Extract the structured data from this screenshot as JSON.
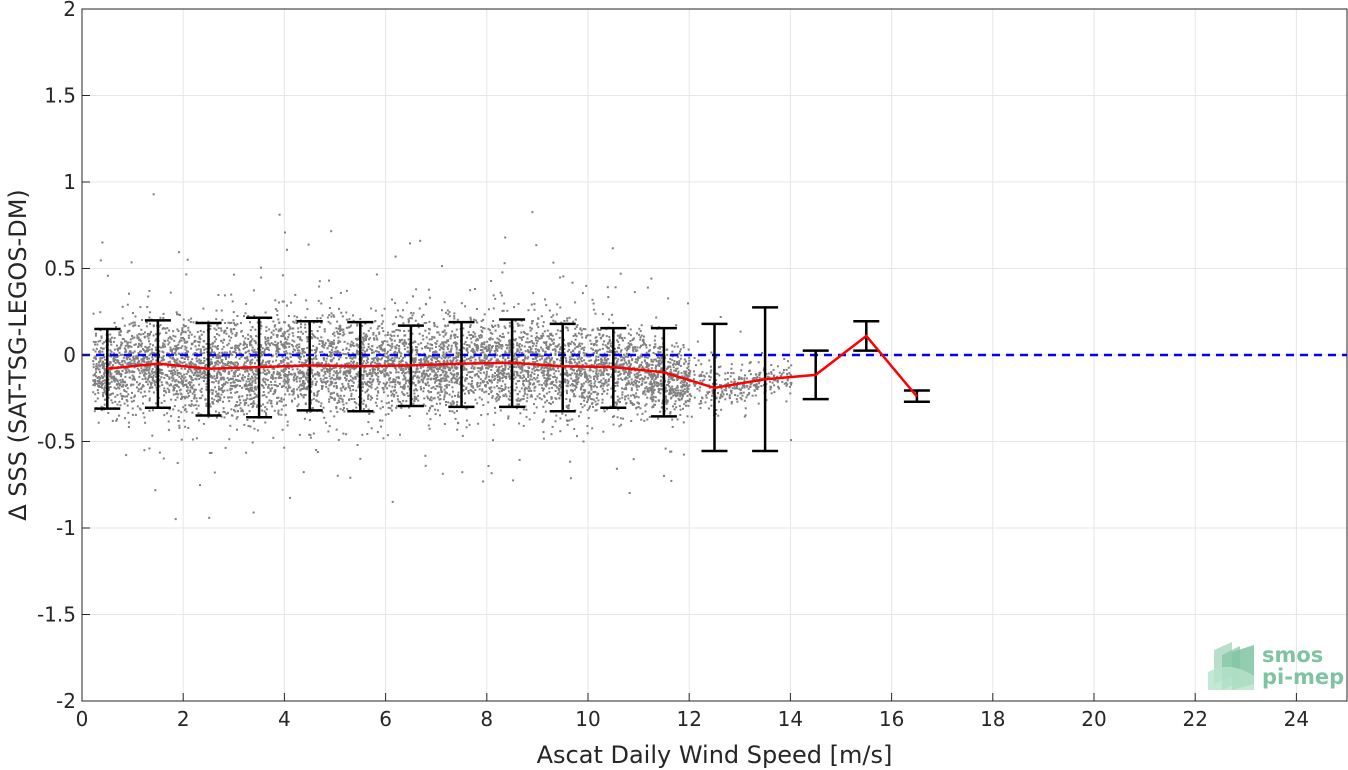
{
  "chart_data": {
    "type": "scatter",
    "xlabel": "Ascat Daily Wind Speed [m/s]",
    "ylabel": "Δ SSS (SAT-TSG-LEGOS-DM)",
    "xlim": [
      0,
      25
    ],
    "ylim": [
      -2,
      2
    ],
    "xticks": [
      0,
      2,
      4,
      6,
      8,
      10,
      12,
      14,
      16,
      18,
      20,
      22,
      24
    ],
    "yticks": [
      -2,
      -1.5,
      -1,
      -0.5,
      0,
      0.5,
      1,
      1.5,
      2
    ],
    "ytick_labels": [
      "-2",
      "-1.5",
      "-1",
      "-0.5",
      "0",
      "0.5",
      "1",
      "1.5",
      "2"
    ],
    "grid": true,
    "series": [
      {
        "style": "scatter",
        "color": "#808080",
        "spread": {
          "x": [
            0.2,
            1,
            2,
            3,
            4,
            5,
            6,
            7,
            8,
            9,
            10,
            11,
            12,
            12.5,
            13,
            13.5,
            14
          ],
          "center": [
            -0.08,
            -0.05,
            -0.07,
            -0.07,
            -0.06,
            -0.06,
            -0.06,
            -0.05,
            -0.05,
            -0.06,
            -0.06,
            -0.09,
            -0.15,
            -0.19,
            -0.17,
            -0.14,
            -0.12
          ],
          "std": [
            0.2,
            0.24,
            0.25,
            0.26,
            0.26,
            0.25,
            0.24,
            0.24,
            0.24,
            0.24,
            0.23,
            0.21,
            0.16,
            0.12,
            0.1,
            0.1,
            0.08
          ]
        }
      },
      {
        "style": "line",
        "color": "#ff0000",
        "x": [
          0.5,
          1.5,
          2.5,
          3.5,
          4.5,
          5.5,
          6.5,
          7.5,
          8.5,
          9.5,
          10.5,
          11.5,
          12.5,
          13.5,
          14.5,
          15.5,
          16.5
        ],
        "y": [
          -0.08,
          -0.05,
          -0.08,
          -0.07,
          -0.06,
          -0.065,
          -0.06,
          -0.05,
          -0.045,
          -0.065,
          -0.07,
          -0.1,
          -0.19,
          -0.14,
          -0.115,
          0.11,
          -0.24
        ]
      },
      {
        "style": "errorbar",
        "color": "#000000",
        "x": [
          0.5,
          1.5,
          2.5,
          3.5,
          4.5,
          5.5,
          6.5,
          7.5,
          8.5,
          9.5,
          10.5,
          11.5,
          12.5,
          13.5,
          14.5,
          15.5,
          16.5
        ],
        "upper": [
          0.15,
          0.2,
          0.185,
          0.215,
          0.195,
          0.19,
          0.17,
          0.19,
          0.205,
          0.18,
          0.155,
          0.155,
          0.18,
          0.275,
          0.025,
          0.195,
          -0.205
        ],
        "lower": [
          -0.31,
          -0.305,
          -0.35,
          -0.36,
          -0.32,
          -0.325,
          -0.295,
          -0.3,
          -0.3,
          -0.325,
          -0.305,
          -0.355,
          -0.555,
          -0.555,
          -0.255,
          0.025,
          -0.27
        ]
      },
      {
        "style": "dashed",
        "color": "#0000ff",
        "y": 0
      }
    ]
  },
  "logo": {
    "line1": "smos",
    "line2": "pi-mep",
    "color": "#7fc4a2"
  }
}
